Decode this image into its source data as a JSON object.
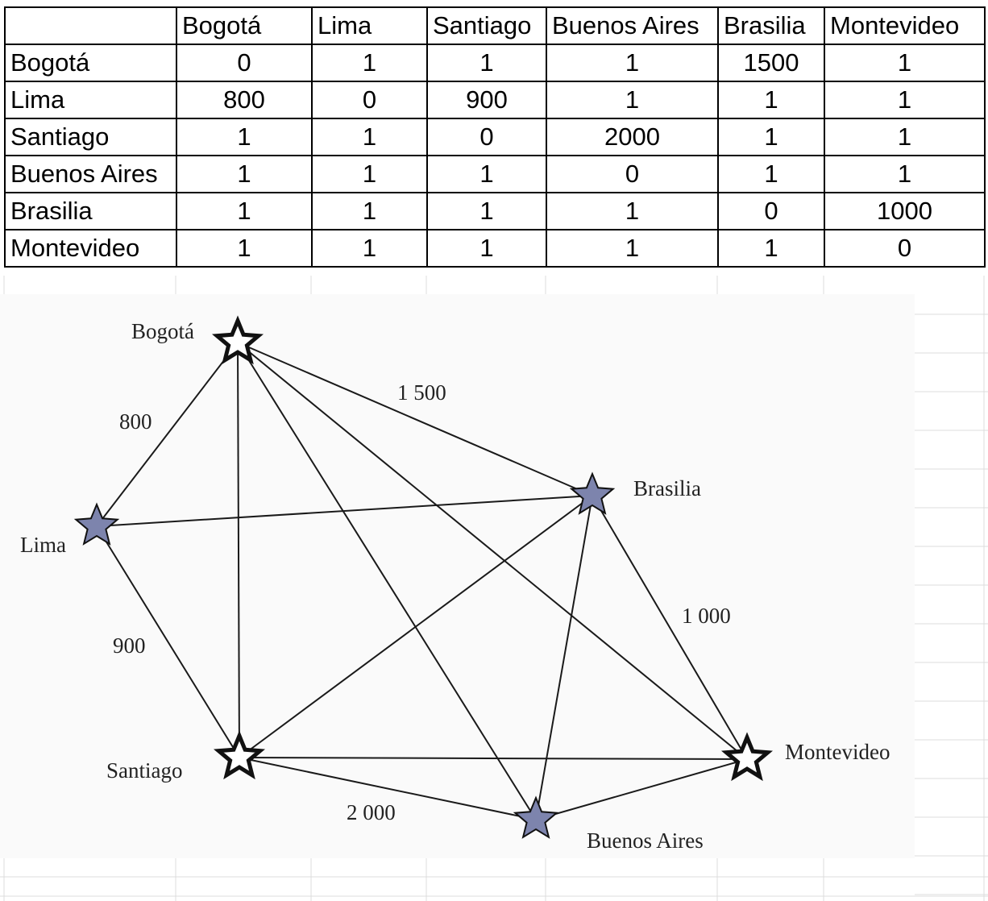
{
  "table": {
    "corner": "",
    "columns": [
      "Bogotá",
      "Lima",
      "Santiago",
      "Buenos Aires",
      "Brasilia",
      "Montevideo"
    ],
    "rows": [
      {
        "label": "Bogotá",
        "values": [
          "0",
          "1",
          "1",
          "1",
          "1500",
          "1"
        ]
      },
      {
        "label": "Lima",
        "values": [
          "800",
          "0",
          "900",
          "1",
          "1",
          "1"
        ]
      },
      {
        "label": "Santiago",
        "values": [
          "1",
          "1",
          "0",
          "2000",
          "1",
          "1"
        ]
      },
      {
        "label": "Buenos Aires",
        "values": [
          "1",
          "1",
          "1",
          "0",
          "1",
          "1"
        ]
      },
      {
        "label": "Brasilia",
        "values": [
          "1",
          "1",
          "1",
          "1",
          "0",
          "1000"
        ]
      },
      {
        "label": "Montevideo",
        "values": [
          "1",
          "1",
          "1",
          "1",
          "1",
          "0"
        ]
      }
    ]
  },
  "graph": {
    "nodes": [
      {
        "id": "bogota",
        "label": "Bogotá",
        "style": "white"
      },
      {
        "id": "lima",
        "label": "Lima",
        "style": "blue"
      },
      {
        "id": "brasilia",
        "label": "Brasilia",
        "style": "blue"
      },
      {
        "id": "santiago",
        "label": "Santiago",
        "style": "white"
      },
      {
        "id": "montevideo",
        "label": "Montevideo",
        "style": "white"
      },
      {
        "id": "buenosaires",
        "label": "Buenos Aires",
        "style": "blue"
      }
    ],
    "edges": [
      {
        "from": "bogota",
        "to": "lima",
        "weight": "800"
      },
      {
        "from": "bogota",
        "to": "brasilia",
        "weight": "1 500"
      },
      {
        "from": "bogota",
        "to": "santiago",
        "weight": ""
      },
      {
        "from": "bogota",
        "to": "buenosaires",
        "weight": ""
      },
      {
        "from": "bogota",
        "to": "montevideo",
        "weight": ""
      },
      {
        "from": "lima",
        "to": "brasilia",
        "weight": ""
      },
      {
        "from": "lima",
        "to": "santiago",
        "weight": "900"
      },
      {
        "from": "brasilia",
        "to": "santiago",
        "weight": ""
      },
      {
        "from": "brasilia",
        "to": "buenosaires",
        "weight": ""
      },
      {
        "from": "brasilia",
        "to": "montevideo",
        "weight": "1 000"
      },
      {
        "from": "santiago",
        "to": "montevideo",
        "weight": ""
      },
      {
        "from": "santiago",
        "to": "buenosaires",
        "weight": "2 000"
      },
      {
        "from": "buenosaires",
        "to": "montevideo",
        "weight": ""
      }
    ]
  },
  "colors": {
    "star_blue": "#7d84ad",
    "star_white": "#ffffff",
    "outline": "#111111",
    "gridline": "#dcdcdc"
  }
}
